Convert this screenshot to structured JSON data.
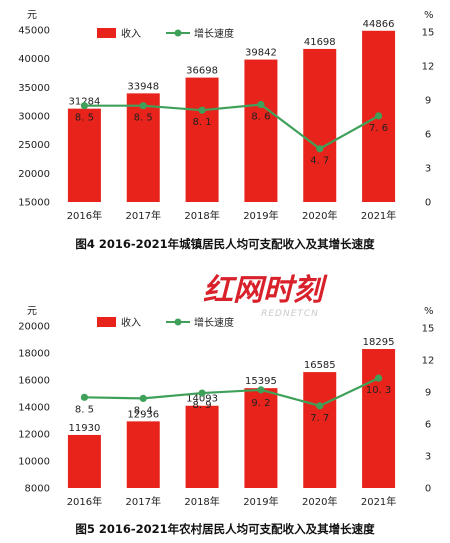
{
  "colors": {
    "bar": "#e8231b",
    "line": "#3fa05a",
    "logo_red": "#d8212a",
    "logo_gray": "#c9c9c9"
  },
  "legend": {
    "bar": "收入",
    "line": "增长速度"
  },
  "watermark": {
    "brand": "红网时刻",
    "sub": "REDNETCN"
  },
  "chart_data": [
    {
      "type": "bar",
      "categories": [
        "2016年",
        "2017年",
        "2018年",
        "2019年",
        "2020年",
        "2021年"
      ],
      "series": [
        {
          "name": "收入",
          "values": [
            31284,
            33948,
            36698,
            39842,
            41698,
            44866
          ]
        },
        {
          "name": "增长速度",
          "type": "line",
          "axis": "right",
          "values": [
            8.5,
            8.5,
            8.1,
            8.6,
            4.7,
            7.6
          ]
        }
      ],
      "y_unit": "元",
      "y2_unit": "%",
      "ylim": [
        15000,
        45000
      ],
      "yticks": [
        15000,
        20000,
        25000,
        30000,
        35000,
        40000,
        45000
      ],
      "y2lim": [
        0,
        15
      ],
      "y2ticks": [
        0,
        3,
        6,
        9,
        12,
        15
      ],
      "caption": "图4   2016-2021年城镇居民人均可支配收入及其增长速度"
    },
    {
      "type": "bar",
      "categories": [
        "2016年",
        "2017年",
        "2018年",
        "2019年",
        "2020年",
        "2021年"
      ],
      "series": [
        {
          "name": "收入",
          "values": [
            11930,
            12936,
            14093,
            15395,
            16585,
            18295
          ]
        },
        {
          "name": "增长速度",
          "type": "line",
          "axis": "right",
          "values": [
            8.5,
            8.4,
            8.9,
            9.2,
            7.7,
            10.3
          ]
        }
      ],
      "y_unit": "元",
      "y2_unit": "%",
      "ylim": [
        8000,
        20000
      ],
      "yticks": [
        8000,
        10000,
        12000,
        14000,
        16000,
        18000,
        20000
      ],
      "y2lim": [
        0,
        15
      ],
      "y2ticks": [
        0,
        3,
        6,
        9,
        12,
        15
      ],
      "caption": "图5   2016-2021年农村居民人均可支配收入及其增长速度"
    }
  ]
}
